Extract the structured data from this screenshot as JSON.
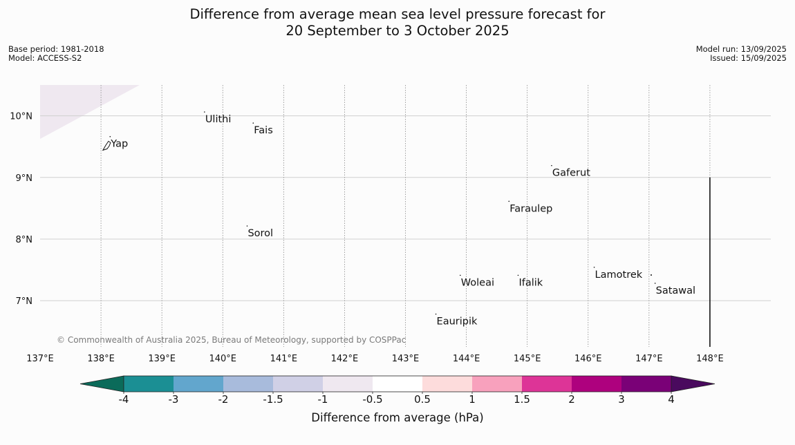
{
  "title": {
    "line1": "Difference from average mean sea level pressure forecast for",
    "line2": "20 September to 3 October 2025"
  },
  "meta_left": {
    "base_period": "Base period: 1981-2018",
    "model": "Model: ACCESS-S2"
  },
  "meta_right": {
    "model_run": "Model run: 13/09/2025",
    "issued": "Issued: 15/09/2025"
  },
  "map": {
    "lon_range": [
      137,
      149
    ],
    "lat_range": [
      6.25,
      10.5
    ],
    "lon_ticks": [
      {
        "value": 137,
        "label": "137°E"
      },
      {
        "value": 138,
        "label": "138°E"
      },
      {
        "value": 139,
        "label": "139°E"
      },
      {
        "value": 140,
        "label": "140°E"
      },
      {
        "value": 141,
        "label": "141°E"
      },
      {
        "value": 142,
        "label": "142°E"
      },
      {
        "value": 143,
        "label": "143°E"
      },
      {
        "value": 144,
        "label": "144°E"
      },
      {
        "value": 145,
        "label": "145°E"
      },
      {
        "value": 146,
        "label": "146°E"
      },
      {
        "value": 147,
        "label": "147°E"
      },
      {
        "value": 148,
        "label": "148°E"
      }
    ],
    "lat_ticks": [
      {
        "value": 10,
        "label": "10°N"
      },
      {
        "value": 9,
        "label": "9°N"
      },
      {
        "value": 8,
        "label": "8°N"
      },
      {
        "value": 7,
        "label": "7°N"
      }
    ],
    "places": [
      {
        "name": "Yap",
        "lon": 138.15,
        "lat": 9.55
      },
      {
        "name": "Ulithi",
        "lon": 139.7,
        "lat": 9.95
      },
      {
        "name": "Fais",
        "lon": 140.5,
        "lat": 9.77
      },
      {
        "name": "Gaferut",
        "lon": 145.4,
        "lat": 9.08
      },
      {
        "name": "Faraulep",
        "lon": 144.7,
        "lat": 8.5
      },
      {
        "name": "Sorol",
        "lon": 140.4,
        "lat": 8.1
      },
      {
        "name": "Woleai",
        "lon": 143.9,
        "lat": 7.3
      },
      {
        "name": "Ifalik",
        "lon": 144.85,
        "lat": 7.3
      },
      {
        "name": "Lamotrek",
        "lon": 146.1,
        "lat": 7.43
      },
      {
        "name": "Satawal",
        "lon": 147.1,
        "lat": 7.17
      },
      {
        "name": "Eauripik",
        "lon": 143.5,
        "lat": 6.67
      }
    ],
    "shaded_region": {
      "category": "-1 to -0.5",
      "color": "#efe8f0",
      "corner": "top-left"
    },
    "boundary_line": {
      "lon": 148,
      "lat_from": 6.25,
      "lat_to": 9.0
    },
    "credit": "© Commonwealth of Australia 2025, Bureau of Meteorology, supported by COSPPac"
  },
  "colorbar": {
    "label": "Difference from average (hPa)",
    "ticks": [
      "-4",
      "-3",
      "-2",
      "-1.5",
      "-1",
      "-0.5",
      "0.5",
      "1",
      "1.5",
      "2",
      "3",
      "4"
    ],
    "under_color": "#0b6b5a",
    "over_color": "#4a0a5e",
    "colors": [
      "#1b8f94",
      "#62a6cd",
      "#a8bbdc",
      "#d0d0e6",
      "#efe8f0",
      "#ffffff",
      "#fddcdc",
      "#f8a1bd",
      "#dd3497",
      "#ae017e",
      "#7a0177"
    ]
  }
}
